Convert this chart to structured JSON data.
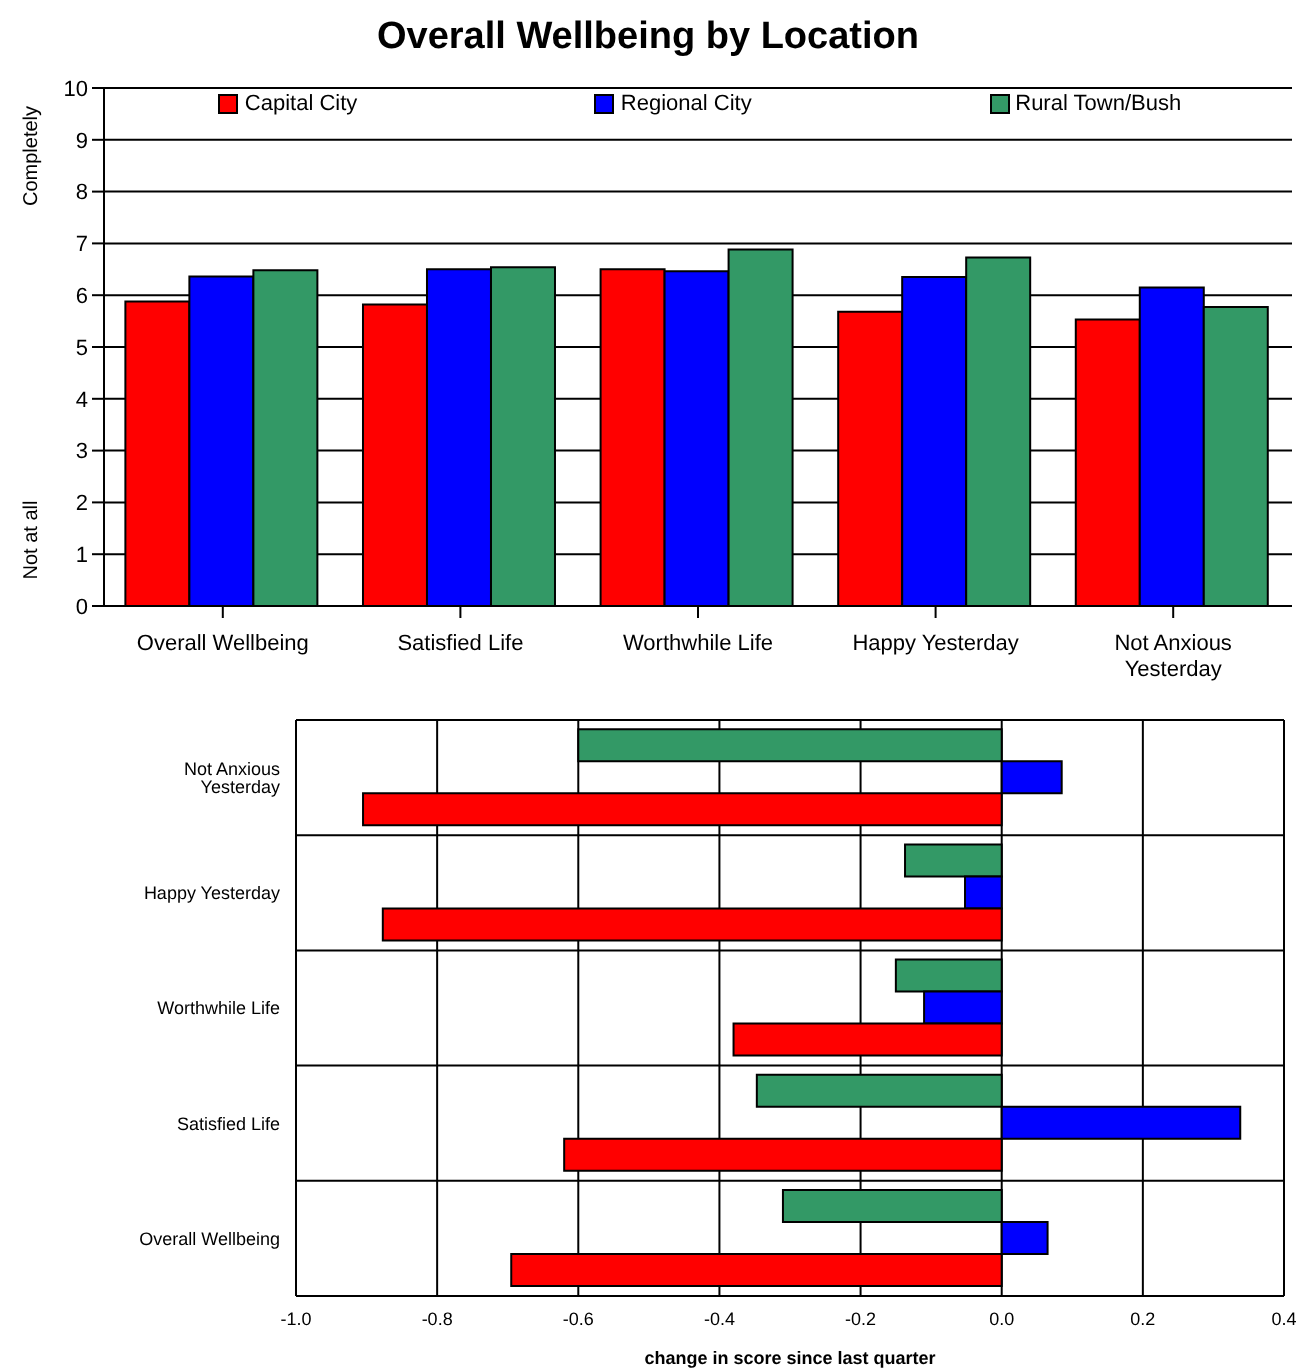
{
  "chart_data": [
    {
      "type": "bar",
      "title": "Overall Wellbeing by Location",
      "categories": [
        "Overall Wellbeing",
        "Satisfied Life",
        "Worthwhile Life",
        "Happy Yesterday",
        "Not Anxious Yesterday"
      ],
      "series": [
        {
          "name": "Capital City",
          "color": "#ff0000",
          "values": [
            5.88,
            5.82,
            6.5,
            5.68,
            5.53
          ]
        },
        {
          "name": "Regional City",
          "color": "#0000ff",
          "values": [
            6.36,
            6.5,
            6.46,
            6.35,
            6.15
          ]
        },
        {
          "name": "Rural Town/Bush",
          "color": "#339966",
          "values": [
            6.48,
            6.54,
            6.88,
            6.73,
            5.77
          ]
        }
      ],
      "ylim": [
        0,
        10
      ],
      "yticks": [
        0,
        1,
        2,
        3,
        4,
        5,
        6,
        7,
        8,
        9,
        10
      ],
      "grid": "y",
      "legend": "top",
      "annotations": [
        "Completely",
        "Not at all"
      ]
    },
    {
      "type": "bar",
      "orientation": "horizontal",
      "xlabel": "change in score since last quarter",
      "categories": [
        "Not Anxious Yesterday",
        "Happy Yesterday",
        "Worthwhile Life",
        "Satisfied Life",
        "Overall Wellbeing"
      ],
      "series": [
        {
          "color": "#ff0000",
          "values": [
            -0.905,
            -0.877,
            -0.38,
            -0.62,
            -0.695
          ]
        },
        {
          "color": "#0000ff",
          "values": [
            0.085,
            -0.052,
            -0.11,
            0.338,
            0.065
          ]
        },
        {
          "color": "#339966",
          "values": [
            -0.6,
            -0.137,
            -0.15,
            -0.347,
            -0.31
          ]
        }
      ],
      "xlim": [
        -1,
        0.4
      ],
      "xticks": [
        {
          "value": -1,
          "label": "-1.0"
        },
        -0.8,
        -0.6,
        -0.4,
        -0.2,
        {
          "value": 0,
          "label": "0.0"
        },
        0.2,
        0.4
      ],
      "grid": true
    }
  ]
}
